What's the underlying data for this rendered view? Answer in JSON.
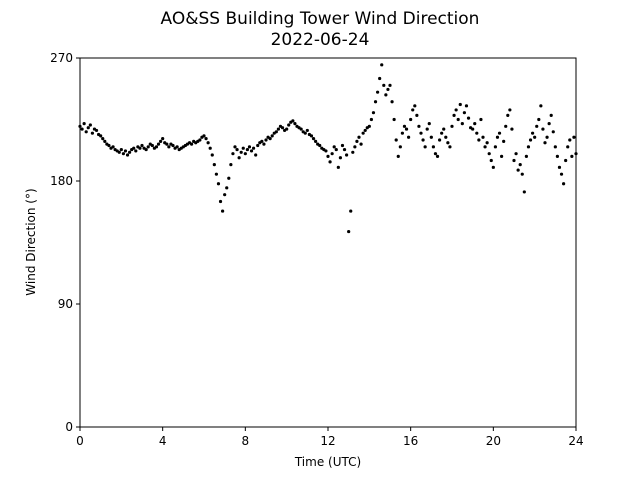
{
  "chart_data": {
    "type": "scatter",
    "title": "AO&SS Building Tower Wind Direction",
    "subtitle": "2022-06-24",
    "xlabel": "Time (UTC)",
    "ylabel": "Wind Direction (°)",
    "color": "#000000",
    "xlim": [
      0,
      24
    ],
    "xticks": [
      0,
      4,
      8,
      12,
      16,
      20,
      24
    ],
    "ylim": [
      0,
      270
    ],
    "yticks": [
      0,
      90,
      180,
      270
    ],
    "x": [
      0,
      0.1,
      0.2,
      0.3,
      0.4,
      0.5,
      0.6,
      0.7,
      0.8,
      0.9,
      1,
      1.1,
      1.2,
      1.3,
      1.4,
      1.5,
      1.6,
      1.7,
      1.8,
      1.9,
      2,
      2.1,
      2.2,
      2.3,
      2.4,
      2.5,
      2.6,
      2.7,
      2.8,
      2.9,
      3,
      3.1,
      3.2,
      3.3,
      3.4,
      3.5,
      3.6,
      3.7,
      3.8,
      3.9,
      4,
      4.1,
      4.2,
      4.3,
      4.4,
      4.5,
      4.6,
      4.7,
      4.8,
      4.9,
      5,
      5.1,
      5.2,
      5.3,
      5.4,
      5.5,
      5.6,
      5.7,
      5.8,
      5.9,
      6,
      6.1,
      6.2,
      6.3,
      6.4,
      6.5,
      6.6,
      6.7,
      6.8,
      6.9,
      7,
      7.1,
      7.2,
      7.3,
      7.4,
      7.5,
      7.6,
      7.7,
      7.8,
      7.9,
      8,
      8.1,
      8.2,
      8.3,
      8.4,
      8.5,
      8.6,
      8.7,
      8.8,
      8.9,
      9,
      9.1,
      9.2,
      9.3,
      9.4,
      9.5,
      9.6,
      9.7,
      9.8,
      9.9,
      10,
      10.1,
      10.2,
      10.3,
      10.4,
      10.5,
      10.6,
      10.7,
      10.8,
      10.9,
      11,
      11.1,
      11.2,
      11.3,
      11.4,
      11.5,
      11.6,
      11.7,
      11.8,
      11.9,
      12,
      12.1,
      12.2,
      12.3,
      12.4,
      12.5,
      12.6,
      12.7,
      12.8,
      12.9,
      13,
      13.1,
      13.2,
      13.3,
      13.4,
      13.5,
      13.6,
      13.7,
      13.8,
      13.9,
      14,
      14.1,
      14.2,
      14.3,
      14.4,
      14.5,
      14.6,
      14.7,
      14.8,
      14.9,
      15,
      15.1,
      15.2,
      15.3,
      15.4,
      15.5,
      15.6,
      15.7,
      15.8,
      15.9,
      16,
      16.1,
      16.2,
      16.3,
      16.4,
      16.5,
      16.6,
      16.7,
      16.8,
      16.9,
      17,
      17.1,
      17.2,
      17.3,
      17.4,
      17.5,
      17.6,
      17.7,
      17.8,
      17.9,
      18,
      18.1,
      18.2,
      18.3,
      18.4,
      18.5,
      18.6,
      18.7,
      18.8,
      18.9,
      19,
      19.1,
      19.2,
      19.3,
      19.4,
      19.5,
      19.6,
      19.7,
      19.8,
      19.9,
      20,
      20.1,
      20.2,
      20.3,
      20.4,
      20.5,
      20.6,
      20.7,
      20.8,
      20.9,
      21,
      21.1,
      21.2,
      21.3,
      21.4,
      21.5,
      21.6,
      21.7,
      21.8,
      21.9,
      22,
      22.1,
      22.2,
      22.3,
      22.4,
      22.5,
      22.6,
      22.7,
      22.8,
      22.9,
      23,
      23.1,
      23.2,
      23.3,
      23.4,
      23.5,
      23.6,
      23.7,
      23.8,
      23.9,
      24
    ],
    "values": [
      220,
      218,
      222,
      216,
      219,
      221,
      215,
      218,
      217,
      214,
      213,
      211,
      209,
      207,
      206,
      204,
      205,
      203,
      202,
      201,
      203,
      200,
      202,
      199,
      201,
      203,
      204,
      202,
      205,
      204,
      206,
      204,
      203,
      205,
      207,
      206,
      204,
      205,
      207,
      209,
      211,
      208,
      207,
      205,
      207,
      206,
      204,
      205,
      203,
      204,
      205,
      206,
      207,
      208,
      207,
      209,
      208,
      209,
      210,
      212,
      213,
      211,
      208,
      204,
      199,
      192,
      185,
      178,
      165,
      158,
      170,
      175,
      182,
      192,
      200,
      205,
      203,
      197,
      201,
      204,
      200,
      203,
      205,
      202,
      204,
      199,
      206,
      208,
      209,
      207,
      210,
      212,
      211,
      213,
      215,
      216,
      218,
      220,
      219,
      217,
      218,
      221,
      223,
      224,
      222,
      220,
      219,
      218,
      216,
      215,
      217,
      214,
      213,
      211,
      209,
      207,
      206,
      204,
      203,
      202,
      198,
      194,
      200,
      205,
      203,
      190,
      197,
      206,
      203,
      199,
      143,
      158,
      201,
      205,
      209,
      212,
      207,
      215,
      217,
      219,
      220,
      225,
      230,
      238,
      245,
      255,
      265,
      250,
      243,
      247,
      250,
      238,
      225,
      210,
      198,
      205,
      215,
      220,
      218,
      212,
      225,
      232,
      235,
      228,
      220,
      215,
      210,
      205,
      218,
      222,
      212,
      205,
      200,
      198,
      210,
      215,
      218,
      212,
      208,
      205,
      220,
      228,
      232,
      225,
      236,
      222,
      230,
      235,
      226,
      219,
      218,
      222,
      215,
      210,
      225,
      212,
      205,
      208,
      200,
      195,
      190,
      205,
      212,
      215,
      198,
      209,
      220,
      228,
      232,
      218,
      195,
      200,
      188,
      192,
      185,
      172,
      198,
      205,
      210,
      215,
      212,
      220,
      225,
      235,
      218,
      208,
      212,
      222,
      228,
      216,
      205,
      198,
      190,
      185,
      178,
      195,
      205,
      210,
      198,
      212,
      200
    ]
  }
}
